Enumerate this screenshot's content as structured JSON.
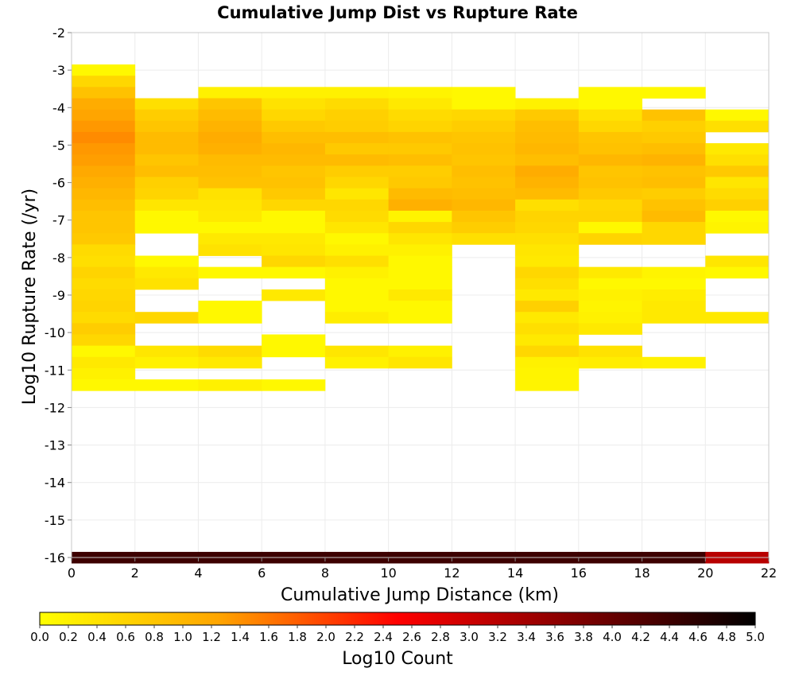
{
  "chart_data": {
    "type": "heatmap",
    "title": "Cumulative Jump Dist vs Rupture Rate",
    "xlabel": "Cumulative Jump Distance (km)",
    "ylabel": "Log10 Rupture Rate (/yr)",
    "xlim": [
      0,
      22
    ],
    "ylim": [
      -16,
      -2
    ],
    "x_ticks": [
      "0",
      "2",
      "4",
      "6",
      "8",
      "10",
      "12",
      "14",
      "16",
      "18",
      "20",
      "22"
    ],
    "y_ticks": [
      "-2",
      "-3",
      "-4",
      "-5",
      "-6",
      "-7",
      "-8",
      "-9",
      "-10",
      "-11",
      "-12",
      "-13",
      "-14",
      "-15",
      "-16"
    ],
    "grid": true,
    "colorbar": {
      "label": "Log10 Count",
      "range": [
        0.0,
        5.0
      ],
      "ticks": [
        "0.0",
        "0.2",
        "0.4",
        "0.6",
        "0.8",
        "1.0",
        "1.2",
        "1.4",
        "1.6",
        "1.8",
        "2.0",
        "2.2",
        "2.4",
        "2.6",
        "2.8",
        "3.0",
        "3.2",
        "3.4",
        "3.6",
        "3.8",
        "4.0",
        "4.2",
        "4.4",
        "4.6",
        "4.8",
        "5.0"
      ],
      "colormap": [
        "#ffff00",
        "#ffa500",
        "#ff0000",
        "#800000",
        "#000000"
      ]
    },
    "x_bin_width_km": 2,
    "y_bin_height_log10": 0.3,
    "columns": [
      {
        "x0": 0,
        "cells": [
          [
            -3.0,
            0.1
          ],
          [
            -3.3,
            0.55
          ],
          [
            -3.6,
            0.85
          ],
          [
            -3.9,
            1.15
          ],
          [
            -4.2,
            1.25
          ],
          [
            -4.5,
            1.35
          ],
          [
            -4.8,
            1.45
          ],
          [
            -5.1,
            1.35
          ],
          [
            -5.4,
            1.3
          ],
          [
            -5.7,
            1.2
          ],
          [
            -6.0,
            1.1
          ],
          [
            -6.3,
            1.0
          ],
          [
            -6.6,
            0.9
          ],
          [
            -6.9,
            0.8
          ],
          [
            -7.2,
            0.8
          ],
          [
            -7.5,
            0.75
          ],
          [
            -7.8,
            0.5
          ],
          [
            -8.1,
            0.45
          ],
          [
            -8.4,
            0.6
          ],
          [
            -8.7,
            0.5
          ],
          [
            -9.0,
            0.55
          ],
          [
            -9.3,
            0.6
          ],
          [
            -9.6,
            0.5
          ],
          [
            -9.9,
            0.7
          ],
          [
            -10.2,
            0.55
          ],
          [
            -10.5,
            0.1
          ],
          [
            -10.8,
            0.3
          ],
          [
            -11.1,
            0.2
          ],
          [
            -11.4,
            0.1
          ],
          [
            -16.0,
            4.4
          ]
        ]
      },
      {
        "x0": 2,
        "cells": [
          [
            -3.9,
            0.45
          ],
          [
            -4.2,
            0.7
          ],
          [
            -4.5,
            0.8
          ],
          [
            -4.8,
            0.95
          ],
          [
            -5.1,
            0.95
          ],
          [
            -5.4,
            0.8
          ],
          [
            -5.7,
            0.9
          ],
          [
            -6.0,
            0.65
          ],
          [
            -6.3,
            0.6
          ],
          [
            -6.6,
            0.35
          ],
          [
            -6.9,
            0.1
          ],
          [
            -7.2,
            0.1
          ],
          [
            -8.1,
            0.1
          ],
          [
            -8.4,
            0.3
          ],
          [
            -8.7,
            0.4
          ],
          [
            -9.6,
            0.55
          ],
          [
            -10.5,
            0.35
          ],
          [
            -10.8,
            0.2
          ],
          [
            -11.4,
            0.1
          ],
          [
            -16.0,
            4.4
          ]
        ]
      },
      {
        "x0": 4,
        "cells": [
          [
            -3.6,
            0.2
          ],
          [
            -3.9,
            0.8
          ],
          [
            -4.2,
            0.95
          ],
          [
            -4.5,
            1.05
          ],
          [
            -4.8,
            1.15
          ],
          [
            -5.1,
            1.1
          ],
          [
            -5.4,
            0.95
          ],
          [
            -5.7,
            0.9
          ],
          [
            -6.0,
            0.85
          ],
          [
            -6.3,
            0.4
          ],
          [
            -6.6,
            0.35
          ],
          [
            -6.9,
            0.3
          ],
          [
            -7.2,
            0.1
          ],
          [
            -7.5,
            0.3
          ],
          [
            -7.8,
            0.4
          ],
          [
            -8.4,
            0.1
          ],
          [
            -9.3,
            0.1
          ],
          [
            -9.6,
            0.1
          ],
          [
            -10.5,
            0.5
          ],
          [
            -10.8,
            0.3
          ],
          [
            -11.4,
            0.2
          ],
          [
            -16.0,
            4.4
          ]
        ]
      },
      {
        "x0": 6,
        "cells": [
          [
            -3.6,
            0.2
          ],
          [
            -3.9,
            0.4
          ],
          [
            -4.2,
            0.55
          ],
          [
            -4.5,
            0.75
          ],
          [
            -4.8,
            0.9
          ],
          [
            -5.1,
            1.0
          ],
          [
            -5.4,
            0.95
          ],
          [
            -5.7,
            0.8
          ],
          [
            -6.0,
            0.85
          ],
          [
            -6.3,
            0.75
          ],
          [
            -6.6,
            0.55
          ],
          [
            -6.9,
            0.1
          ],
          [
            -7.2,
            0.1
          ],
          [
            -7.5,
            0.3
          ],
          [
            -7.8,
            0.35
          ],
          [
            -8.1,
            0.55
          ],
          [
            -8.4,
            0.1
          ],
          [
            -9.0,
            0.3
          ],
          [
            -10.2,
            0.1
          ],
          [
            -10.5,
            0.1
          ],
          [
            -11.4,
            0.1
          ],
          [
            -16.0,
            4.4
          ]
        ]
      },
      {
        "x0": 8,
        "cells": [
          [
            -3.6,
            0.2
          ],
          [
            -3.9,
            0.5
          ],
          [
            -4.2,
            0.65
          ],
          [
            -4.5,
            0.7
          ],
          [
            -4.8,
            0.9
          ],
          [
            -5.1,
            0.75
          ],
          [
            -5.4,
            0.95
          ],
          [
            -5.7,
            0.7
          ],
          [
            -6.0,
            0.55
          ],
          [
            -6.3,
            0.35
          ],
          [
            -6.6,
            0.55
          ],
          [
            -6.9,
            0.5
          ],
          [
            -7.2,
            0.35
          ],
          [
            -7.5,
            0.1
          ],
          [
            -7.8,
            0.2
          ],
          [
            -8.1,
            0.45
          ],
          [
            -8.4,
            0.2
          ],
          [
            -8.7,
            0.1
          ],
          [
            -9.0,
            0.1
          ],
          [
            -9.3,
            0.1
          ],
          [
            -9.6,
            0.25
          ],
          [
            -10.5,
            0.35
          ],
          [
            -10.8,
            0.2
          ],
          [
            -16.0,
            4.4
          ]
        ]
      },
      {
        "x0": 10,
        "cells": [
          [
            -3.6,
            0.15
          ],
          [
            -3.9,
            0.3
          ],
          [
            -4.2,
            0.5
          ],
          [
            -4.5,
            0.6
          ],
          [
            -4.8,
            0.85
          ],
          [
            -5.1,
            0.75
          ],
          [
            -5.4,
            0.9
          ],
          [
            -5.7,
            0.7
          ],
          [
            -6.0,
            0.75
          ],
          [
            -6.3,
            0.95
          ],
          [
            -6.6,
            1.1
          ],
          [
            -6.9,
            0.15
          ],
          [
            -7.2,
            0.55
          ],
          [
            -7.5,
            0.35
          ],
          [
            -7.8,
            0.2
          ],
          [
            -8.1,
            0.1
          ],
          [
            -8.4,
            0.1
          ],
          [
            -8.7,
            0.1
          ],
          [
            -9.0,
            0.3
          ],
          [
            -9.3,
            0.1
          ],
          [
            -9.6,
            0.1
          ],
          [
            -10.5,
            0.2
          ],
          [
            -10.8,
            0.35
          ],
          [
            -16.0,
            4.4
          ]
        ]
      },
      {
        "x0": 12,
        "cells": [
          [
            -3.6,
            0.1
          ],
          [
            -3.9,
            0.1
          ],
          [
            -4.2,
            0.55
          ],
          [
            -4.5,
            0.7
          ],
          [
            -4.8,
            0.8
          ],
          [
            -5.1,
            0.85
          ],
          [
            -5.4,
            0.8
          ],
          [
            -5.7,
            0.9
          ],
          [
            -6.0,
            0.85
          ],
          [
            -6.3,
            0.9
          ],
          [
            -6.6,
            1.0
          ],
          [
            -6.9,
            0.8
          ],
          [
            -7.2,
            0.7
          ],
          [
            -7.5,
            0.45
          ],
          [
            -16.0,
            4.4
          ]
        ]
      },
      {
        "x0": 14,
        "cells": [
          [
            -3.9,
            0.2
          ],
          [
            -4.2,
            0.75
          ],
          [
            -4.5,
            0.9
          ],
          [
            -4.8,
            0.95
          ],
          [
            -5.1,
            1.0
          ],
          [
            -5.4,
            0.9
          ],
          [
            -5.7,
            1.15
          ],
          [
            -6.0,
            1.05
          ],
          [
            -6.3,
            0.95
          ],
          [
            -6.6,
            0.45
          ],
          [
            -6.9,
            0.6
          ],
          [
            -7.2,
            0.55
          ],
          [
            -7.5,
            0.45
          ],
          [
            -7.8,
            0.35
          ],
          [
            -8.1,
            0.3
          ],
          [
            -8.4,
            0.55
          ],
          [
            -8.7,
            0.45
          ],
          [
            -9.0,
            0.3
          ],
          [
            -9.3,
            0.65
          ],
          [
            -9.6,
            0.3
          ],
          [
            -9.9,
            0.45
          ],
          [
            -10.2,
            0.3
          ],
          [
            -10.5,
            0.55
          ],
          [
            -10.8,
            0.2
          ],
          [
            -11.1,
            0.15
          ],
          [
            -11.4,
            0.15
          ],
          [
            -16.0,
            4.4
          ]
        ]
      },
      {
        "x0": 16,
        "cells": [
          [
            -3.6,
            0.1
          ],
          [
            -3.9,
            0.1
          ],
          [
            -4.2,
            0.4
          ],
          [
            -4.5,
            0.55
          ],
          [
            -4.8,
            0.8
          ],
          [
            -5.1,
            0.85
          ],
          [
            -5.4,
            1.0
          ],
          [
            -5.7,
            0.8
          ],
          [
            -6.0,
            0.85
          ],
          [
            -6.3,
            0.75
          ],
          [
            -6.6,
            0.55
          ],
          [
            -6.9,
            0.6
          ],
          [
            -7.2,
            0.1
          ],
          [
            -7.5,
            0.6
          ],
          [
            -8.4,
            0.3
          ],
          [
            -8.7,
            0.1
          ],
          [
            -9.0,
            0.2
          ],
          [
            -9.3,
            0.15
          ],
          [
            -9.6,
            0.2
          ],
          [
            -9.9,
            0.3
          ],
          [
            -10.5,
            0.4
          ],
          [
            -10.8,
            0.25
          ],
          [
            -16.0,
            4.4
          ]
        ]
      },
      {
        "x0": 18,
        "cells": [
          [
            -3.6,
            0.1
          ],
          [
            -4.2,
            0.85
          ],
          [
            -4.5,
            0.65
          ],
          [
            -4.8,
            0.75
          ],
          [
            -5.1,
            0.9
          ],
          [
            -5.4,
            1.05
          ],
          [
            -5.7,
            0.85
          ],
          [
            -6.0,
            0.9
          ],
          [
            -6.3,
            0.7
          ],
          [
            -6.6,
            0.85
          ],
          [
            -6.9,
            0.95
          ],
          [
            -7.2,
            0.55
          ],
          [
            -7.5,
            0.55
          ],
          [
            -8.4,
            0.15
          ],
          [
            -8.7,
            0.1
          ],
          [
            -9.0,
            0.25
          ],
          [
            -9.3,
            0.3
          ],
          [
            -9.6,
            0.3
          ],
          [
            -10.8,
            0.2
          ],
          [
            -16.0,
            4.4
          ]
        ]
      },
      {
        "x0": 20,
        "cells": [
          [
            -4.2,
            0.1
          ],
          [
            -4.5,
            0.45
          ],
          [
            -5.1,
            0.3
          ],
          [
            -5.4,
            0.45
          ],
          [
            -5.7,
            0.75
          ],
          [
            -6.0,
            0.35
          ],
          [
            -6.3,
            0.5
          ],
          [
            -6.6,
            0.65
          ],
          [
            -6.9,
            0.1
          ],
          [
            -7.2,
            0.15
          ],
          [
            -8.1,
            0.35
          ],
          [
            -8.4,
            0.1
          ],
          [
            -9.6,
            0.3
          ],
          [
            -16.0,
            3.2
          ]
        ]
      }
    ]
  }
}
